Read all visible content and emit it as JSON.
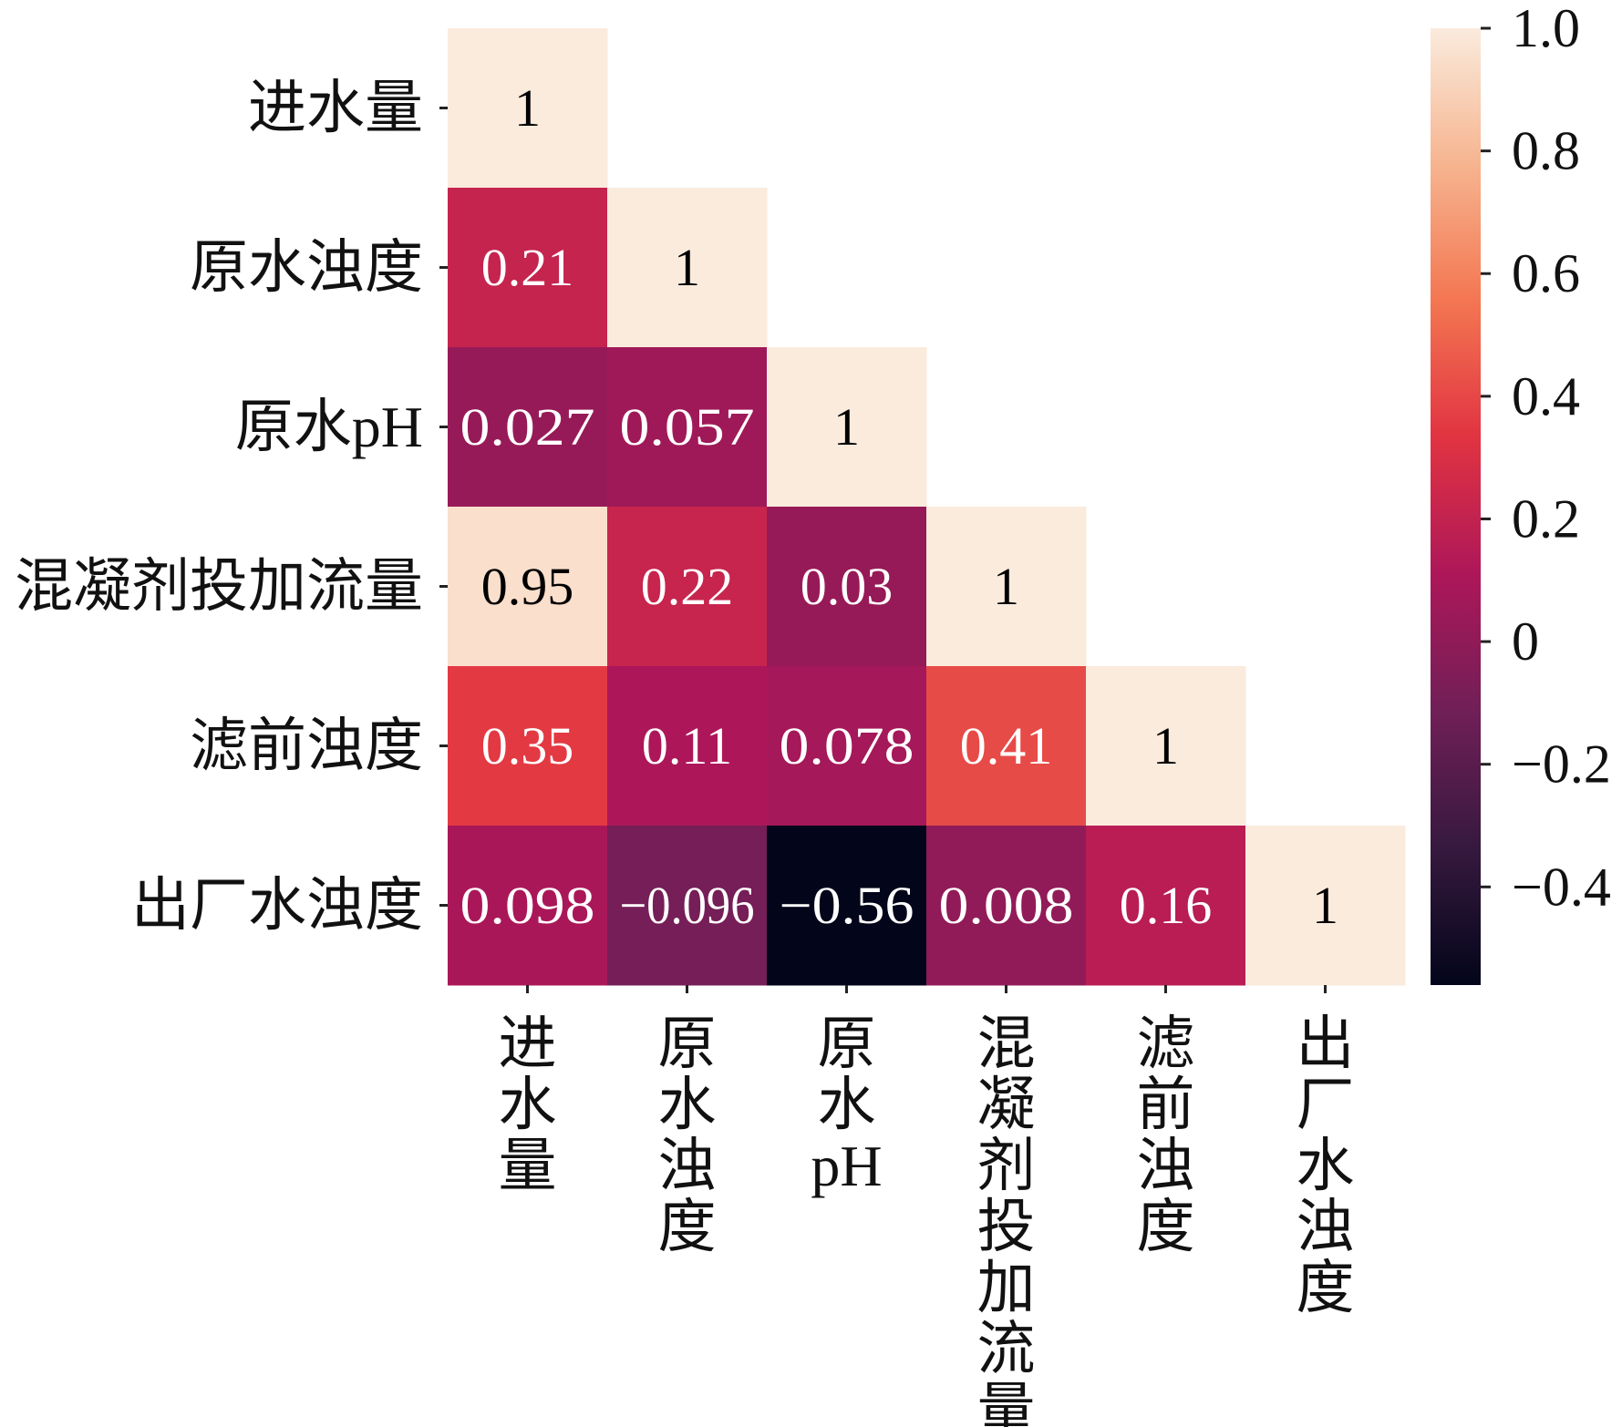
{
  "chart_data": {
    "type": "heatmap",
    "variables": [
      "进水量",
      "原水浊度",
      "原水pH",
      "混凝剂投加流量",
      "滤前浊度",
      "出厂水浊度"
    ],
    "x_tick_labels": [
      "进\n水\n量",
      "原\n水\n浊\n度",
      "原\n水\npH",
      "混\n凝\n剂\n投\n加\n流\n量",
      "滤\n前\n浊\n度",
      "出\n厂\n水\n浊\n度"
    ],
    "y_tick_labels": [
      "进水量",
      "原水浊度",
      "原水pH",
      "混凝剂投加流量",
      "滤前浊度",
      "出厂水浊度"
    ],
    "matrix": [
      [
        1,
        null,
        null,
        null,
        null,
        null
      ],
      [
        0.21,
        1,
        null,
        null,
        null,
        null
      ],
      [
        0.027,
        0.057,
        1,
        null,
        null,
        null
      ],
      [
        0.95,
        0.22,
        0.03,
        1,
        null,
        null
      ],
      [
        0.35,
        0.11,
        0.078,
        0.41,
        1,
        null
      ],
      [
        0.098,
        -0.096,
        -0.56,
        0.008,
        0.16,
        1
      ]
    ],
    "cell_labels": [
      [
        "1"
      ],
      [
        "0.21",
        "1"
      ],
      [
        "0.027",
        "0.057",
        "1"
      ],
      [
        "0.95",
        "0.22",
        "0.03",
        "1"
      ],
      [
        "0.35",
        "0.11",
        "0.078",
        "0.41",
        "1"
      ],
      [
        "0.098",
        "−0.096",
        "−0.56",
        "0.008",
        "0.16",
        "1"
      ]
    ],
    "mask": "upper triangle",
    "colorbar": {
      "range": [
        -0.56,
        1.0
      ],
      "ticks": [
        1.0,
        0.8,
        0.6,
        0.4,
        0.2,
        0,
        -0.2,
        -0.4
      ],
      "tick_labels": [
        "1.0",
        "0.8",
        "0.6",
        "0.4",
        "0.2",
        "0",
        "−0.2",
        "−0.4"
      ],
      "colormap": "rocket",
      "colors": [
        "#03051a",
        "#36193e",
        "#701f57",
        "#ad1759",
        "#e13342",
        "#f37651",
        "#f6b48f",
        "#faebdd"
      ]
    },
    "annotation_colors": {
      "on_dark": "#ffffff",
      "on_light": "#000000"
    }
  }
}
